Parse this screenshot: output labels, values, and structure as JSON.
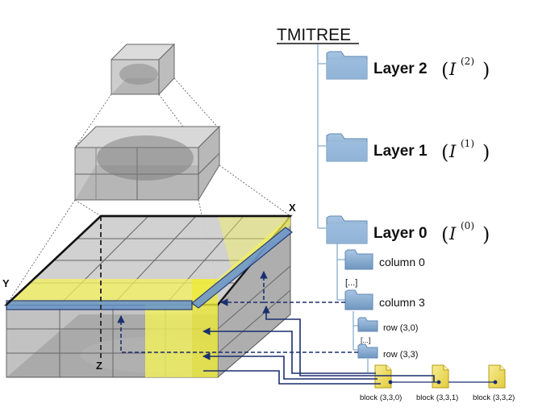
{
  "title": "TMITREE",
  "layers": [
    {
      "label": "Layer 2",
      "math_base": "I",
      "math_sup": "(2)"
    },
    {
      "label": "Layer 1",
      "math_base": "I",
      "math_sup": "(1)"
    },
    {
      "label": "Layer 0",
      "math_base": "I",
      "math_sup": "(0)"
    }
  ],
  "columns": [
    {
      "label": "column 0"
    },
    {
      "label": "[...]"
    },
    {
      "label": "column 3"
    }
  ],
  "rows": [
    {
      "label": "row (3,0)"
    },
    {
      "label": "[...]"
    },
    {
      "label": "row (3,3)"
    }
  ],
  "blocks": [
    {
      "label": "block (3,3,0)"
    },
    {
      "label": "block (3,3,1)"
    },
    {
      "label": "block (3,3,2)"
    }
  ],
  "axes": {
    "x": "X",
    "y": "Y",
    "z": "Z"
  },
  "colors": {
    "folder": "#8fb3d6",
    "folder_dark": "#5f88b3",
    "file": "#f2e27a",
    "highlight": "#f4f25a",
    "arrow": "#1a2f6e",
    "tree_line": "#7fa7c9"
  }
}
